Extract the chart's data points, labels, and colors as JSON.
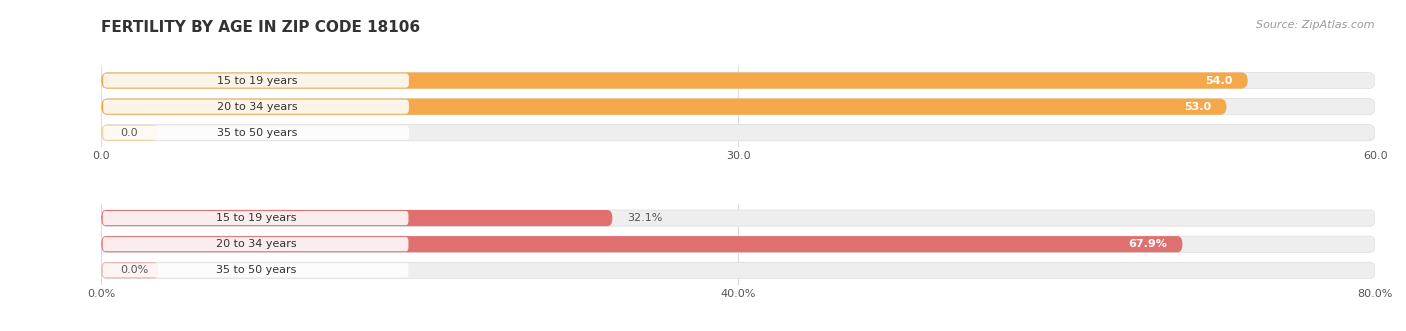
{
  "title": "FERTILITY BY AGE IN ZIP CODE 18106",
  "source": "Source: ZipAtlas.com",
  "top_group": {
    "categories": [
      "15 to 19 years",
      "20 to 34 years",
      "35 to 50 years"
    ],
    "values": [
      54.0,
      53.0,
      0.0
    ],
    "labels": [
      "54.0",
      "53.0",
      "0.0"
    ],
    "xlim": [
      0,
      60.0
    ],
    "xticks": [
      0.0,
      30.0,
      60.0
    ],
    "xticklabels": [
      "0.0",
      "30.0",
      "60.0"
    ],
    "bar_color": "#F5A84A",
    "bar_color_light": "#F5CFA0",
    "bar_bg_color": "#EEEEEE"
  },
  "bottom_group": {
    "categories": [
      "15 to 19 years",
      "20 to 34 years",
      "35 to 50 years"
    ],
    "values": [
      32.1,
      67.9,
      0.0
    ],
    "labels": [
      "32.1%",
      "67.9%",
      "0.0%"
    ],
    "xlim": [
      0,
      80.0
    ],
    "xticks": [
      0.0,
      40.0,
      80.0
    ],
    "xticklabels": [
      "0.0%",
      "40.0%",
      "80.0%"
    ],
    "bar_color": "#E07070",
    "bar_color_light": "#F0AAAA",
    "bar_bg_color": "#EEEEEE"
  },
  "title_fontsize": 11,
  "source_fontsize": 8,
  "label_fontsize": 8,
  "tick_fontsize": 8,
  "cat_fontsize": 8,
  "background_color": "#FFFFFF",
  "bar_height": 0.62,
  "label_box_color": "#FFFFFF",
  "grid_color": "#DDDDDD",
  "text_color": "#555555"
}
